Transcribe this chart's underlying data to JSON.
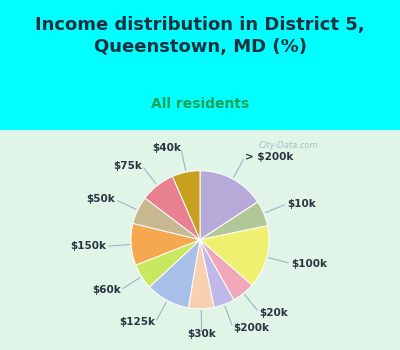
{
  "title": "Income distribution in District 5,\nQueenstown, MD (%)",
  "subtitle": "All residents",
  "bg_cyan": "#00FFFF",
  "bg_chart": "#d8f0e0",
  "labels": [
    "> $200k",
    "$10k",
    "$100k",
    "$20k",
    "$200k",
    "$30k",
    "$125k",
    "$60k",
    "$150k",
    "$50k",
    "$75k",
    "$40k"
  ],
  "values": [
    14.5,
    5.5,
    13.5,
    5.0,
    4.5,
    5.5,
    9.5,
    5.5,
    9.0,
    6.0,
    7.5,
    6.0
  ],
  "colors": [
    "#b8aad8",
    "#b0c898",
    "#f0f070",
    "#f0a8b8",
    "#c0b8e8",
    "#f8d0b0",
    "#a8c0e8",
    "#c8e860",
    "#f5a850",
    "#c8b890",
    "#e88090",
    "#c8a020"
  ],
  "watermark": "City-Data.com",
  "title_fontsize": 13,
  "subtitle_fontsize": 10,
  "label_fontsize": 7.5
}
